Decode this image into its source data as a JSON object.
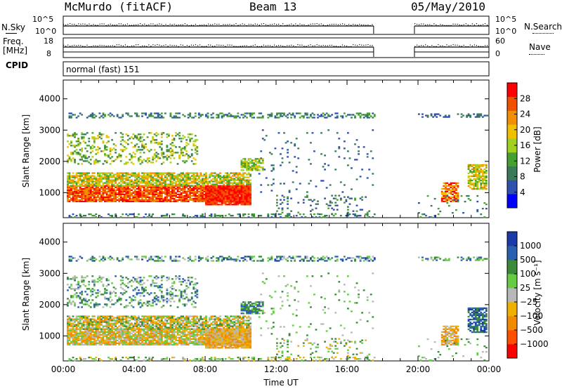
{
  "header": {
    "title": "McMurdo (fitACF)",
    "beam": "Beam 13",
    "date": "05/May/2010"
  },
  "summary_panels": {
    "nsky_label": "N.Sky",
    "nsky_ticks": [
      "10^5",
      "10^0"
    ],
    "nsearch_label": "N.Search",
    "freq_label_1": "Freq.",
    "freq_label_2": "[MHz]",
    "freq_ticks": [
      "18",
      "8"
    ],
    "nave_label": "Nave",
    "nave_ticks": [
      "60",
      "0"
    ],
    "cpid_label": "CPID",
    "cpid_value": "normal (fast) 151"
  },
  "chart_data": [
    {
      "type": "heatmap",
      "name": "power",
      "ylabel": "Slant Range [km]",
      "xlabel": "Time UT",
      "yticks": [
        "4000",
        "3000",
        "2000",
        "1000"
      ],
      "ylim": [
        200,
        4600
      ],
      "xlim_hours": [
        0,
        24
      ],
      "colorbar_label": "Power [dB]",
      "colorbar_ticks": [
        "28",
        "24",
        "20",
        "16",
        "12",
        "8",
        "4"
      ],
      "colorbar_colors": [
        "#0000ff",
        "#3050b0",
        "#3a7a5a",
        "#46a030",
        "#a0d020",
        "#f0c000",
        "#f09000",
        "#f05000",
        "#ff0000"
      ],
      "data_gap_hours": [
        17.5,
        19.8
      ]
    },
    {
      "type": "heatmap",
      "name": "velocity",
      "ylabel": "Slant Range [km]",
      "xlabel": "Time UT",
      "yticks": [
        "4000",
        "3000",
        "2000",
        "1000"
      ],
      "ylim": [
        200,
        4600
      ],
      "xlim_hours": [
        0,
        24
      ],
      "colorbar_label": "Velocity [m s⁻¹]",
      "colorbar_ticks": [
        "1000",
        "500",
        "100",
        "25",
        "−25",
        "−100",
        "−500",
        "−1000"
      ],
      "colorbar_colors": [
        "#ff0000",
        "#ff5000",
        "#f08a00",
        "#f0b000",
        "#b8b8b8",
        "#66cc44",
        "#3a8a3a",
        "#2a5fb0",
        "#1a3aa8"
      ],
      "data_gap_hours": [
        17.5,
        19.8
      ]
    }
  ],
  "x_axis": {
    "ticks": [
      "00:00",
      "04:00",
      "08:00",
      "12:00",
      "16:00",
      "20:00",
      "00:00"
    ],
    "label": "Time UT"
  }
}
